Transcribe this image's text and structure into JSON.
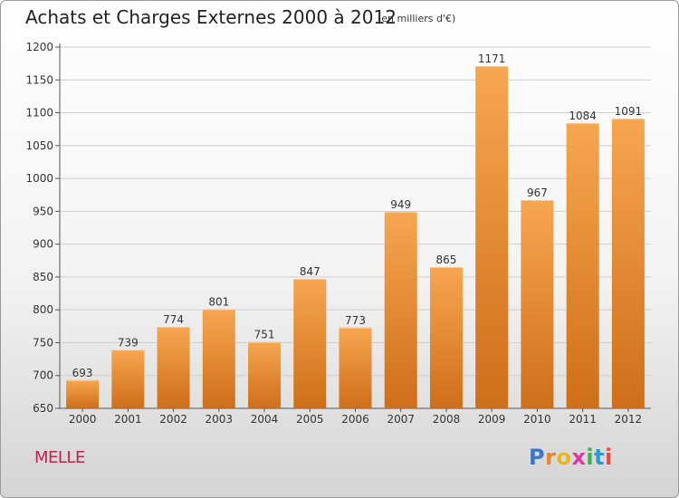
{
  "header": {
    "title": "Achats et Charges Externes 2000 à 2012",
    "subtitle": "(en milliers d'€)"
  },
  "footer": {
    "commune": "MELLE",
    "logo_letters": [
      "P",
      "r",
      "o",
      "x",
      "i",
      "t",
      "i"
    ],
    "logo_colors": [
      "#3b78c4",
      "#e8842b",
      "#e8b61c",
      "#d83aa0",
      "#3bb14a",
      "#2a9ad6",
      "#e84a3a"
    ]
  },
  "colors": {
    "bar_top": "#f7a650",
    "bar_bottom": "#cf6e18",
    "grid": "#cfcfcf",
    "axis": "#555555"
  },
  "chart_data": {
    "type": "bar",
    "categories": [
      "2000",
      "2001",
      "2002",
      "2003",
      "2004",
      "2005",
      "2006",
      "2007",
      "2008",
      "2009",
      "2010",
      "2011",
      "2012"
    ],
    "values": [
      693,
      739,
      774,
      801,
      751,
      847,
      773,
      949,
      865,
      1171,
      967,
      1084,
      1091
    ],
    "yticks": [
      650,
      700,
      750,
      800,
      850,
      900,
      950,
      1000,
      1050,
      1100,
      1150,
      1200
    ],
    "ylim": [
      650,
      1200
    ],
    "grid": true,
    "xlabel": "",
    "ylabel": ""
  }
}
